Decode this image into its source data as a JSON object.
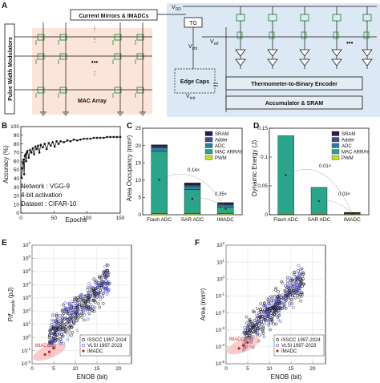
{
  "panels": {
    "a": {
      "letter": "A",
      "labels": {
        "current_mirrors": "Current Mirrors & IMADCs",
        "pwm": "Pulse Width Modulators",
        "mac": "MAC Array",
        "vdd": "V",
        "vdd_sub": "DD",
        "tg": "TG",
        "vctrl": "V",
        "vctrl_sub": "ctrl",
        "vref": "V",
        "vref_sub": "ref",
        "edge": "Edge Caps",
        "vinit": "V",
        "vinit_sub": "init",
        "t2b": "Thermometer-to-Binary Encoder",
        "acc": "Accumulator & SRAM",
        "dots": "•••"
      }
    },
    "b": {
      "letter": "B",
      "annotation": [
        "Network : VGG-9",
        "4-bit activation",
        "Dataset : CIFAR-10"
      ]
    },
    "c": {
      "letter": "C"
    },
    "d": {
      "letter": "D"
    },
    "e": {
      "letter": "E"
    },
    "f": {
      "letter": "F"
    }
  },
  "chart_data": [
    {
      "id": "B",
      "type": "line",
      "xlabel": "Epochs",
      "ylabel": "Accuracy (%)",
      "xlim": [
        0,
        150
      ],
      "ylim": [
        0,
        100
      ],
      "xticks": [
        0,
        50,
        100,
        150
      ],
      "yticks": [
        0,
        10,
        20,
        30,
        40,
        50,
        60,
        70,
        80,
        90,
        100
      ],
      "series": [
        {
          "x": [
            1,
            2,
            3,
            4,
            5,
            6,
            7,
            8,
            9,
            10,
            12,
            14,
            16,
            18,
            20,
            22,
            24,
            26,
            28,
            30,
            33,
            36,
            39,
            42,
            45,
            48,
            51,
            54,
            57,
            60,
            65,
            70,
            75,
            80,
            85,
            90,
            95,
            100,
            105,
            110,
            115,
            120,
            125,
            130,
            135,
            140,
            145,
            150
          ],
          "values": [
            41,
            52,
            58,
            62,
            45,
            66,
            68,
            60,
            70,
            72,
            64,
            73,
            70,
            75,
            68,
            77,
            74,
            78,
            70,
            79,
            76,
            80,
            74,
            81,
            78,
            82,
            77,
            83,
            80,
            83,
            82,
            84,
            83,
            85,
            84,
            85,
            86,
            86,
            86,
            87,
            87,
            87,
            87,
            88,
            88,
            88,
            88,
            88
          ]
        }
      ]
    },
    {
      "id": "C",
      "type": "bar",
      "ylabel": "Area Occupancy (mm²)",
      "ylim": [
        0,
        25
      ],
      "yticks": [
        0,
        5,
        10,
        15,
        20,
        25
      ],
      "categories": [
        "Flash ADC",
        "SAR ADC",
        "IMADC"
      ],
      "legend": [
        "SRAM",
        "Adder",
        "ADC",
        "MAC ARRAY",
        "PWM"
      ],
      "legend_position": "top-right",
      "colors": {
        "SRAM": "#2b1a4f",
        "Adder": "#3a4f8f",
        "ADC": "#2e7f9a",
        "MAC ARRAY": "#2aa58a",
        "PWM": "#c6d936"
      },
      "series": [
        {
          "name": "PWM",
          "values": [
            0.3,
            0.3,
            0.3
          ]
        },
        {
          "name": "MAC ARRAY",
          "values": [
            18.0,
            7.0,
            1.9
          ]
        },
        {
          "name": "ADC",
          "values": [
            1.1,
            1.0,
            0.6
          ]
        },
        {
          "name": "Adder",
          "values": [
            0.3,
            0.3,
            0.3
          ]
        },
        {
          "name": "SRAM",
          "values": [
            0.5,
            0.6,
            0.4
          ]
        }
      ],
      "annotations": [
        "0.14×",
        "0.35×"
      ]
    },
    {
      "id": "D",
      "type": "bar",
      "ylabel": "Dynamic Energy (J)",
      "ylim": [
        0,
        0.15
      ],
      "yticks": [
        0,
        0.05,
        0.1,
        0.15
      ],
      "ytick_labels": [
        "0",
        "0.05",
        "0.1",
        "0.15"
      ],
      "categories": [
        "Flash ADC",
        "SAR ADC",
        "IMADC"
      ],
      "legend": [
        "SRAM",
        "Adder",
        "ADC",
        "MAC ARRAY",
        "PWM"
      ],
      "legend_position": "top-right",
      "series": [
        {
          "name": "PWM",
          "values": [
            0.001,
            0.001,
            0.001
          ]
        },
        {
          "name": "MAC ARRAY",
          "values": [
            0.136,
            0.0465,
            0.001
          ]
        },
        {
          "name": "ADC",
          "values": [
            0.0,
            0.0,
            0.001
          ]
        },
        {
          "name": "Adder",
          "values": [
            0.0,
            0.0,
            0.0005
          ]
        },
        {
          "name": "SRAM",
          "values": [
            0.0,
            0.0,
            0.0005
          ]
        }
      ],
      "annotations": [
        "0.01×",
        "0.03×"
      ]
    },
    {
      "id": "E",
      "type": "scatter",
      "xlabel": "ENOB (bit)",
      "ylabel": "P/f",
      "ylabel_sub": "sample",
      "ylabel_unit": "(pJ)",
      "yscale": "log",
      "xlim": [
        0,
        23
      ],
      "ylim": [
        0.01,
        10000000
      ],
      "xticks": [
        0,
        5,
        10,
        15,
        20
      ],
      "ytick_exponents": [
        -2,
        -1,
        0,
        1,
        2,
        3,
        4,
        5,
        6,
        7
      ],
      "legend": [
        "ISSCC 1997-2024",
        "VLSI 1997-2023",
        "IMADC"
      ],
      "legend_position": "bottom-right",
      "highlight_label": "IMADC",
      "series": [
        {
          "name": "ISSCC 1997-2024",
          "color": "#111111"
        },
        {
          "name": "VLSI 1997-2023",
          "color": "#4a4ad8"
        },
        {
          "name": "IMADC",
          "color": "#d21f1f",
          "points": [
            [
              3,
              0.05
            ],
            [
              4,
              0.08
            ],
            [
              5,
              0.15
            ]
          ]
        }
      ]
    },
    {
      "id": "F",
      "type": "scatter",
      "xlabel": "ENOB (bit)",
      "ylabel": "Area (mm²)",
      "yscale": "log",
      "xlim": [
        0,
        23
      ],
      "ylim": [
        1e-05,
        100
      ],
      "xticks": [
        0,
        5,
        10,
        15,
        20
      ],
      "ytick_exponents": [
        -5,
        -4,
        -3,
        -2,
        -1,
        0,
        1,
        2
      ],
      "legend": [
        "ISSCC 1997-2024",
        "VLSI 1997-2023",
        "IMADC"
      ],
      "legend_position": "bottom-right",
      "highlight_label": "IMADC",
      "series": [
        {
          "name": "ISSCC 1997-2024",
          "color": "#111111"
        },
        {
          "name": "VLSI 1997-2023",
          "color": "#4a4ad8"
        },
        {
          "name": "IMADC",
          "color": "#d21f1f",
          "points": [
            [
              3,
              8e-05
            ],
            [
              4,
              0.00012
            ],
            [
              5,
              0.00018
            ]
          ]
        }
      ]
    }
  ]
}
